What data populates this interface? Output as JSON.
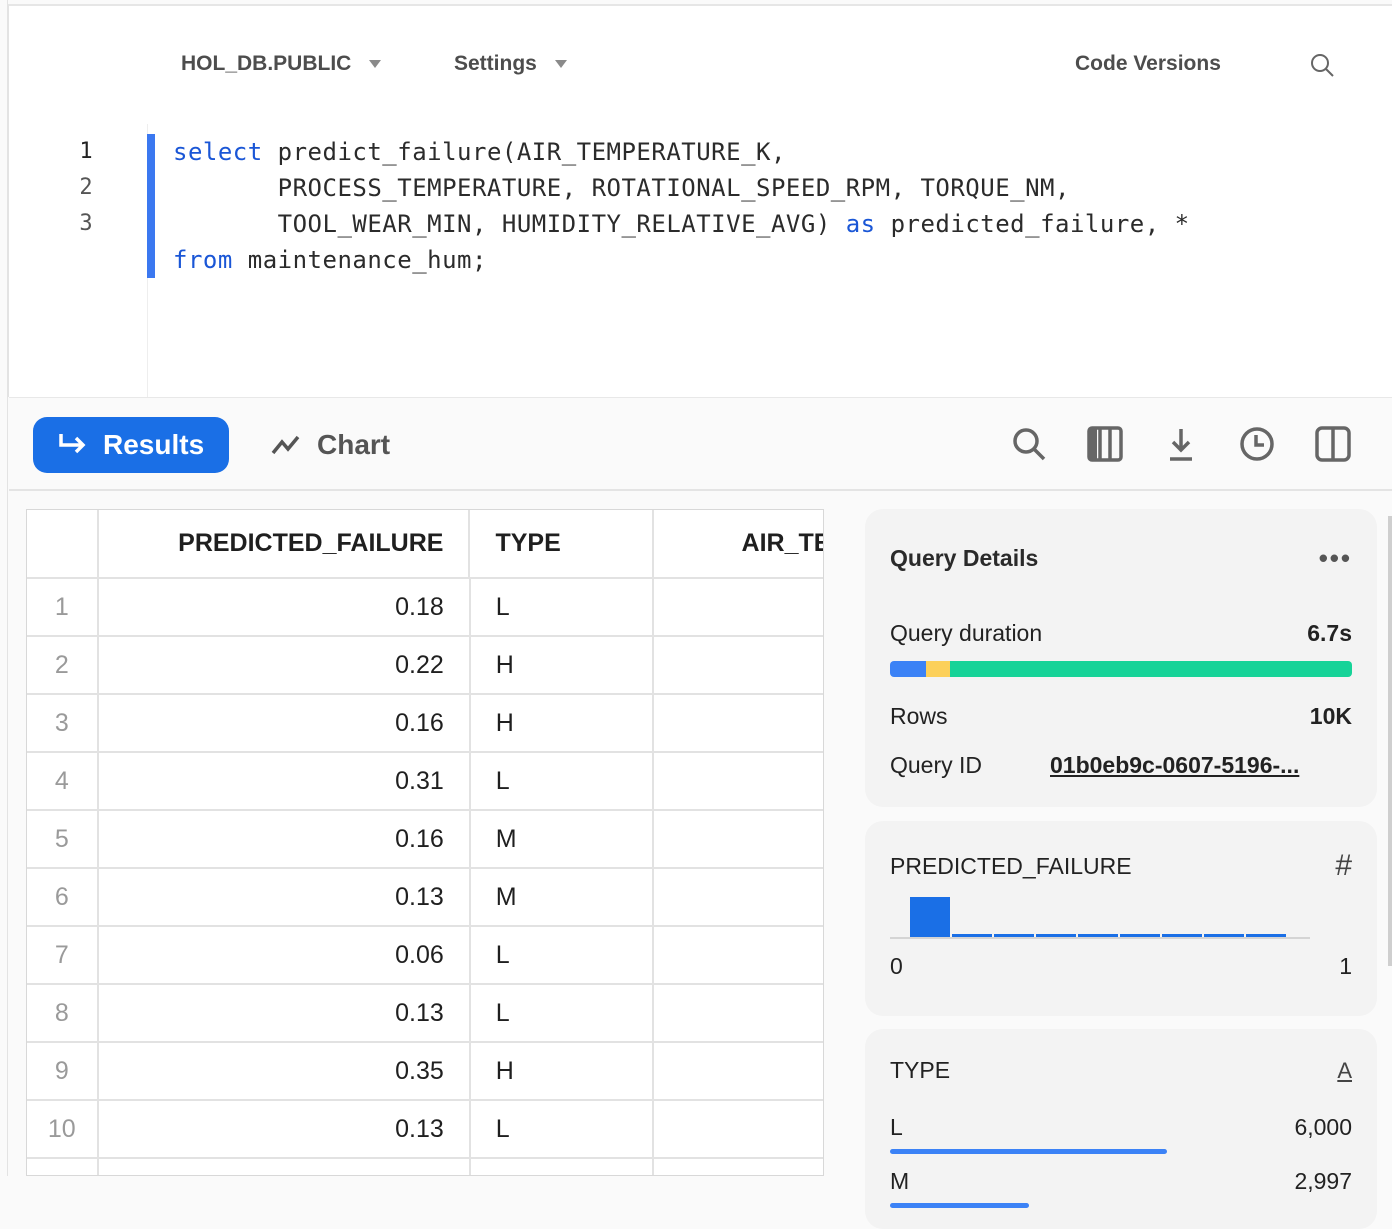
{
  "editor": {
    "database": "HOL_DB.PUBLIC",
    "settings": "Settings",
    "code_versions": "Code Versions",
    "line_numbers": [
      "1",
      "2",
      "3"
    ],
    "code": {
      "l1_kw": "select",
      "l1": " predict_failure(AIR_TEMPERATURE_K,",
      "l2": "       PROCESS_TEMPERATURE, ROTATIONAL_SPEED_RPM, TORQUE_NM,",
      "l3a": "       TOOL_WEAR_MIN, HUMIDITY_RELATIVE_AVG) ",
      "l3_kw": "as",
      "l3b": " predicted_failure, *",
      "l4_kw": "from",
      "l4": " maintenance_hum;"
    }
  },
  "toolbar": {
    "results": "Results",
    "chart": "Chart"
  },
  "table": {
    "columns": [
      "PREDICTED_FAILURE",
      "TYPE",
      "AIR_TE"
    ],
    "rows": [
      [
        "1",
        "0.18",
        "L"
      ],
      [
        "2",
        "0.22",
        "H"
      ],
      [
        "3",
        "0.16",
        "H"
      ],
      [
        "4",
        "0.31",
        "L"
      ],
      [
        "5",
        "0.16",
        "M"
      ],
      [
        "6",
        "0.13",
        "M"
      ],
      [
        "7",
        "0.06",
        "L"
      ],
      [
        "8",
        "0.13",
        "L"
      ],
      [
        "9",
        "0.35",
        "H"
      ],
      [
        "10",
        "0.13",
        "L"
      ]
    ]
  },
  "query_details": {
    "title": "Query Details",
    "duration_label": "Query duration",
    "duration": "6.7s",
    "duration_segments": [
      {
        "color": "#3b82f6",
        "fraction": 0.077
      },
      {
        "color": "#fcd05a",
        "fraction": 0.053
      },
      {
        "color": "#16d398",
        "fraction": 0.87
      }
    ],
    "rows_label": "Rows",
    "rows": "10K",
    "id_label": "Query ID",
    "id": "01b0eb9c-0607-5196-..."
  },
  "predicted_failure_card": {
    "title": "PREDICTED_FAILURE",
    "icon": "hash-icon",
    "min": "0",
    "max": "1",
    "histogram": [
      1,
      0.05,
      0.05,
      0.05,
      0.05,
      0.05,
      0.05,
      0.05,
      0.05
    ]
  },
  "type_card": {
    "title": "TYPE",
    "icon": "text-type-icon",
    "items": [
      {
        "label": "L",
        "count": "6,000",
        "fraction": 0.6
      },
      {
        "label": "M",
        "count": "2,997",
        "fraction": 0.3
      }
    ]
  },
  "colors": {
    "accent": "#1a6fe6",
    "code_keyword": "#1a56d6"
  }
}
